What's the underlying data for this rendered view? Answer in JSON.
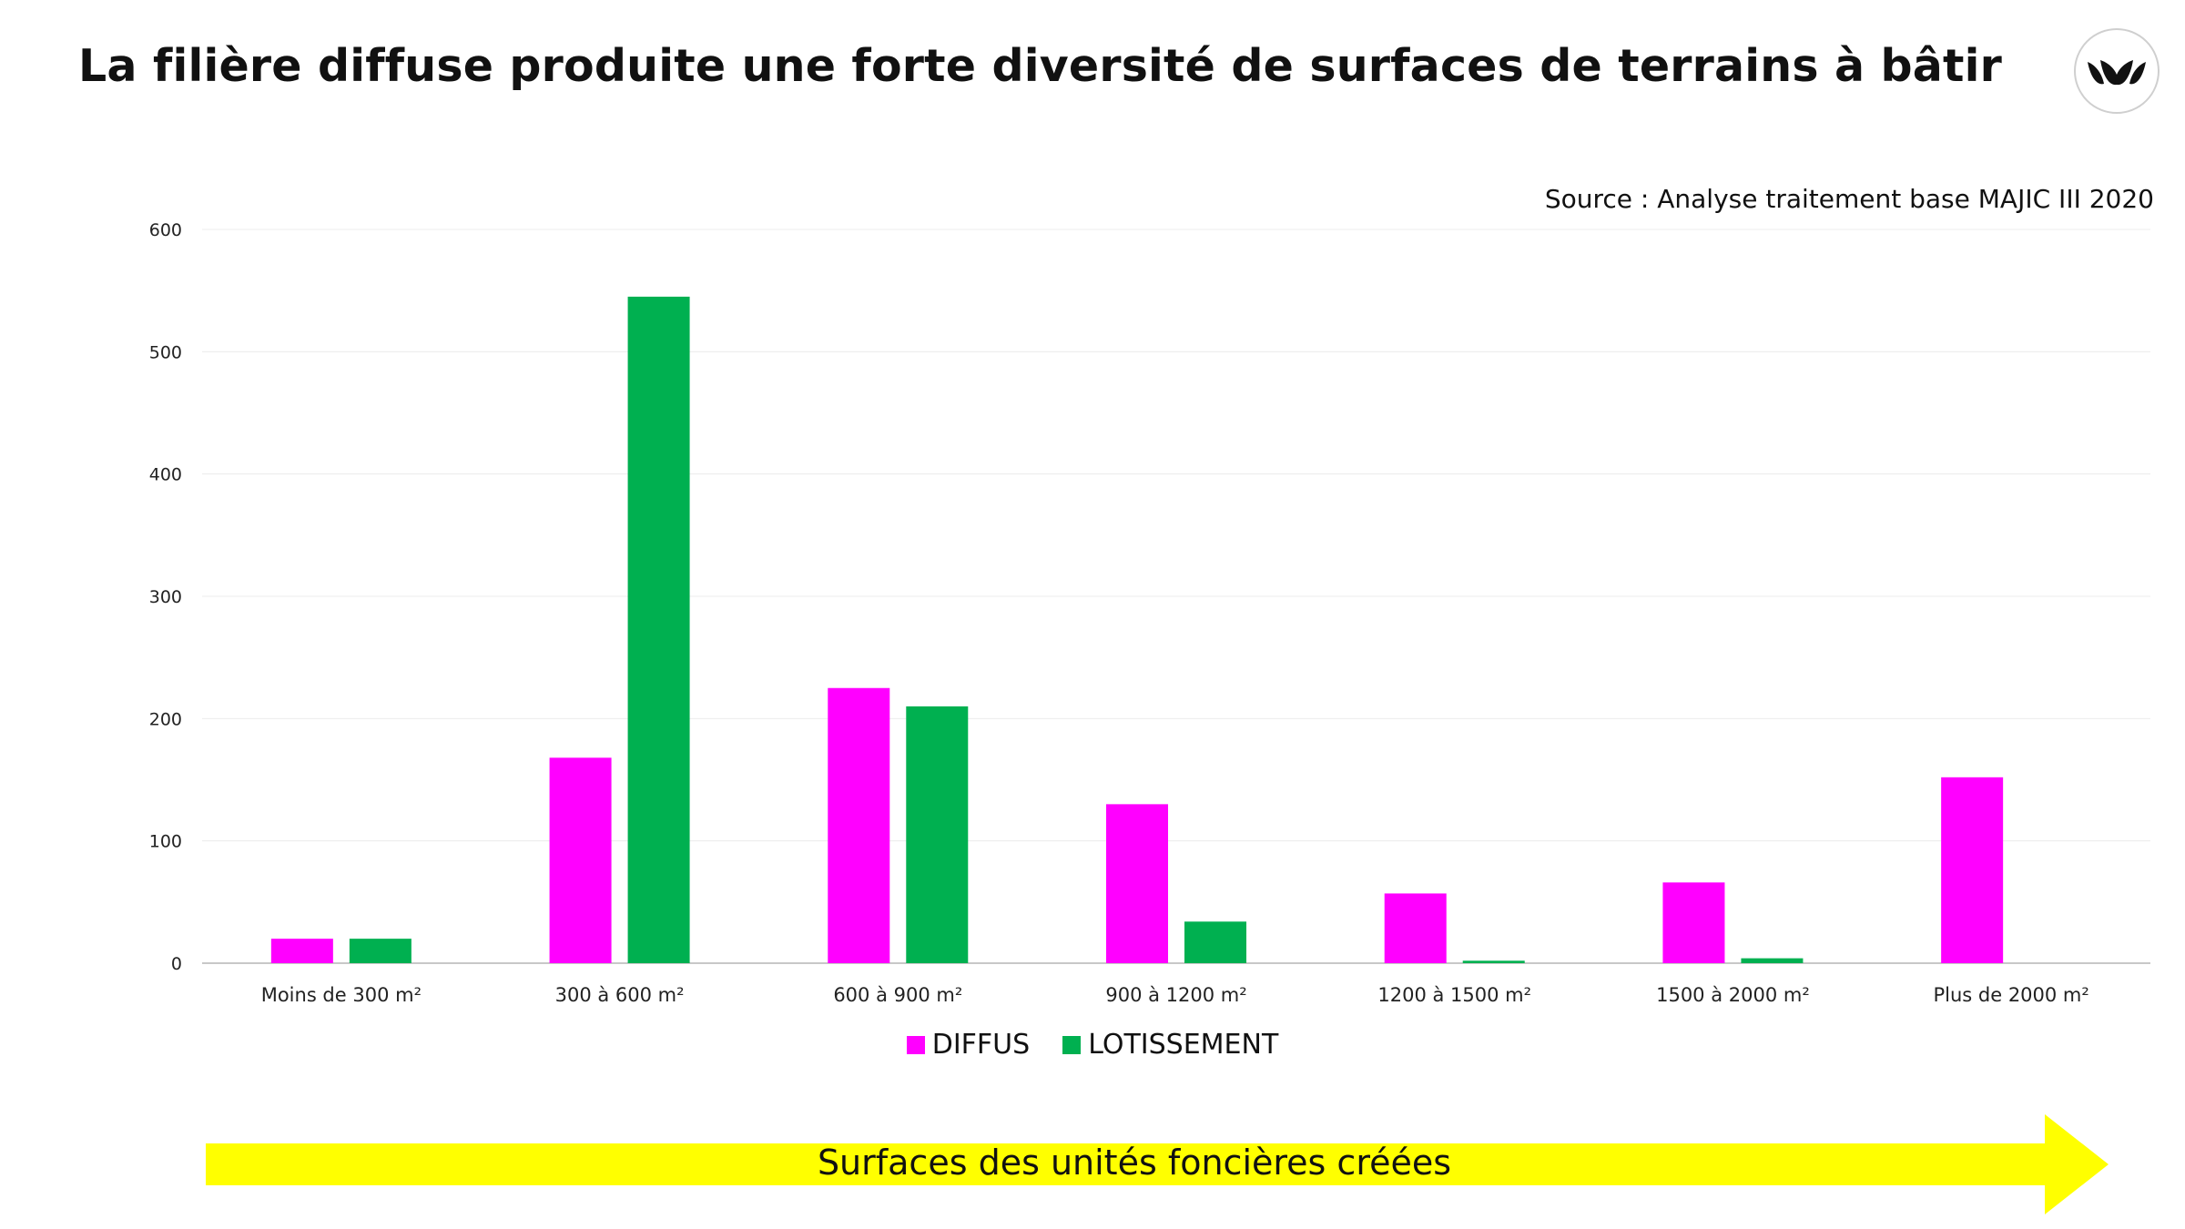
{
  "header": {
    "title": "La filière diffuse produite une forte diversité de surfaces de terrains à bâtir",
    "logo_icon": "leaves-logo-icon"
  },
  "source": "Source : Analyse traitement base MAJIC III 2020",
  "chart_data": {
    "type": "bar",
    "categories": [
      "Moins de 300 m²",
      "300 à 600 m²",
      "600 à 900 m²",
      "900 à 1200 m²",
      "1200 à 1500 m²",
      "1500 à 2000 m²",
      "Plus de 2000 m²"
    ],
    "series": [
      {
        "name": "DIFFUS",
        "color": "#ff00ff",
        "values": [
          20,
          168,
          225,
          130,
          57,
          66,
          152
        ]
      },
      {
        "name": "LOTISSEMENT",
        "color": "#00b050",
        "values": [
          20,
          545,
          210,
          34,
          2,
          4,
          0
        ]
      }
    ],
    "yticks": [
      0,
      100,
      200,
      300,
      400,
      500,
      600
    ],
    "ylim": [
      0,
      600
    ],
    "grid": true,
    "legend_position": "bottom"
  },
  "footer": {
    "arrow_label": "Surfaces des unités foncières créées",
    "arrow_color": "#ffff00"
  }
}
